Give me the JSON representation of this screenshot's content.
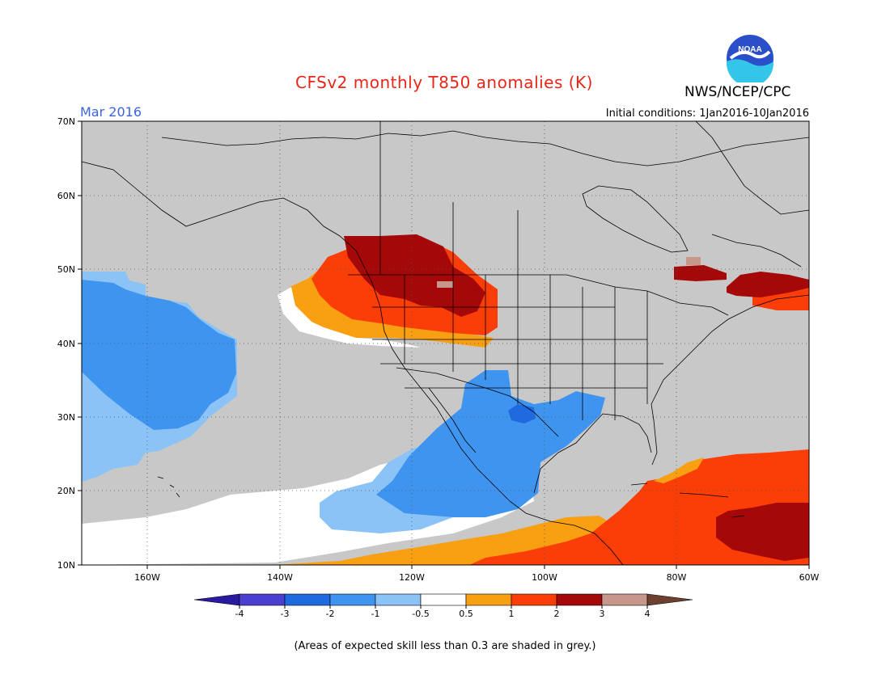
{
  "header": {
    "title": "CFSv2 monthly T850 anomalies (K)",
    "agency": "NWS/NCEP/CPC",
    "logo_text": "NOAA",
    "valid_month": "Mar 2016",
    "initial_conditions": "Initial conditions: 1Jan2016-10Jan2016"
  },
  "map": {
    "region": "North America / Eastern Pacific",
    "lon_range": [
      -170,
      -60
    ],
    "lat_range": [
      10,
      70
    ],
    "lat_labels": [
      "70N",
      "60N",
      "50N",
      "40N",
      "30N",
      "20N",
      "10N"
    ],
    "lon_labels": [
      "160W",
      "140W",
      "120W",
      "100W",
      "80W",
      "60W"
    ],
    "mask_color": "#c8c8c8",
    "coastline_color": "#000000"
  },
  "colorbar": {
    "ticks": [
      "-4",
      "-3",
      "-2",
      "-1",
      "-0.5",
      "0.5",
      "1",
      "2",
      "3",
      "4"
    ],
    "colors": [
      "#2a1aa0",
      "#4b3fd0",
      "#1f6adf",
      "#3f94ef",
      "#8bc3f6",
      "#ffffff",
      "#f8a012",
      "#fb3d08",
      "#a40808",
      "#c8978b",
      "#6e4030"
    ]
  },
  "footer": {
    "note": "(Areas of expected skill less than 0.3 are shaded in grey.)"
  }
}
